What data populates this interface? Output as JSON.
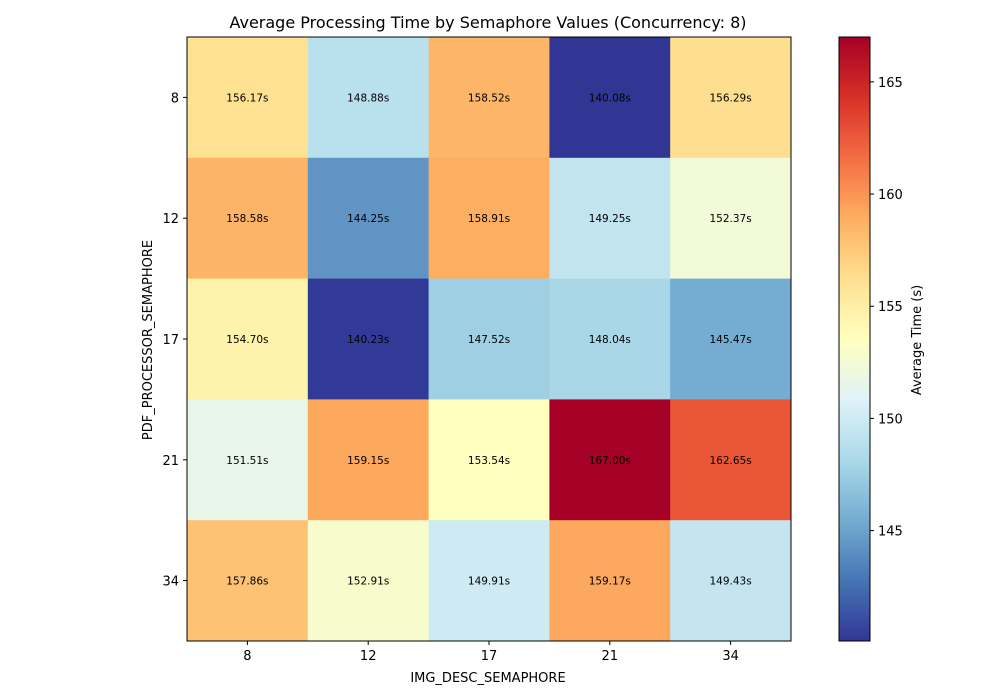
{
  "chart_data": {
    "type": "heatmap",
    "title": "Average Processing Time by Semaphore Values (Concurrency: 8)",
    "xlabel": "IMG_DESC_SEMAPHORE",
    "ylabel": "PDF_PROCESSOR_SEMAPHORE",
    "x_categories": [
      "8",
      "12",
      "17",
      "21",
      "34"
    ],
    "y_categories": [
      "8",
      "12",
      "17",
      "21",
      "34"
    ],
    "values": [
      [
        156.17,
        148.88,
        158.52,
        140.08,
        156.29
      ],
      [
        158.58,
        144.25,
        158.91,
        149.25,
        152.37
      ],
      [
        154.7,
        140.23,
        147.52,
        148.04,
        145.47
      ],
      [
        151.51,
        159.15,
        153.54,
        167.0,
        162.65
      ],
      [
        157.86,
        152.91,
        149.91,
        159.17,
        149.43
      ]
    ],
    "cell_labels": [
      [
        "156.17s",
        "148.88s",
        "158.52s",
        "140.08s",
        "156.29s"
      ],
      [
        "158.58s",
        "144.25s",
        "158.91s",
        "149.25s",
        "152.37s"
      ],
      [
        "154.70s",
        "140.23s",
        "147.52s",
        "148.04s",
        "145.47s"
      ],
      [
        "151.51s",
        "159.15s",
        "153.54s",
        "167.00s",
        "162.65s"
      ],
      [
        "157.86s",
        "152.91s",
        "149.91s",
        "159.17s",
        "149.43s"
      ]
    ],
    "colorbar": {
      "label": "Average Time (s)",
      "range": [
        140.08,
        167.0
      ],
      "ticks": [
        "145",
        "150",
        "155",
        "160",
        "165"
      ],
      "tick_values": [
        145,
        150,
        155,
        160,
        165
      ]
    },
    "colormap": [
      "#313695",
      "#4575b4",
      "#74add1",
      "#abd9e9",
      "#e0f3f8",
      "#ffffbf",
      "#fee090",
      "#fdae61",
      "#f46d43",
      "#d73027",
      "#a50026"
    ]
  }
}
